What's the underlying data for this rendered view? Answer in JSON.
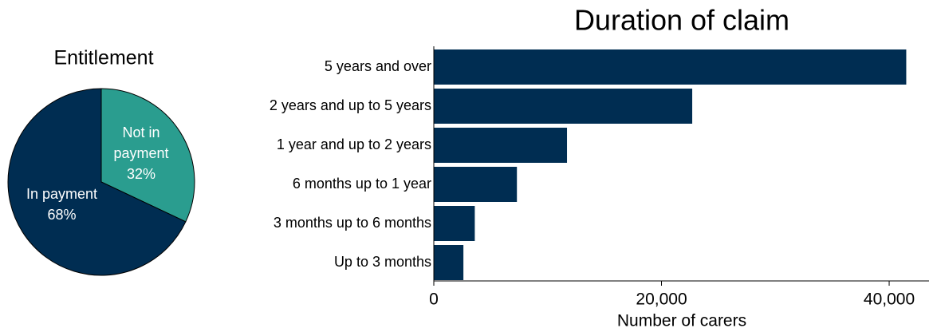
{
  "chart_data": [
    {
      "type": "pie",
      "title": "Entitlement",
      "categories": [
        "In payment",
        "Not in payment"
      ],
      "values": [
        68,
        32
      ],
      "value_labels": [
        "68%",
        "32%"
      ],
      "colors": [
        "#002d52",
        "#2a9d8f"
      ]
    },
    {
      "type": "hbar",
      "title": "Duration of claim",
      "categories": [
        "5 years and over",
        "2 years and up to 5 years",
        "1 year and up to 2 years",
        "6 months up to 1 year",
        "3 months up to 6 months",
        "Up to 3 months"
      ],
      "values": [
        41500,
        22700,
        11700,
        7300,
        3600,
        2600
      ],
      "color": "#002d52",
      "xlabel": "Number of carers",
      "xlim": [
        0,
        43500
      ],
      "xticks": [
        0,
        {
          "value": 20000,
          "label": "20,000"
        },
        {
          "value": 40000,
          "label": "40,000"
        }
      ]
    }
  ]
}
